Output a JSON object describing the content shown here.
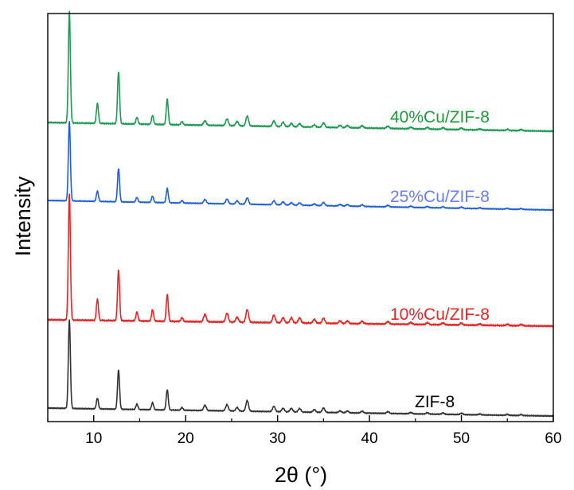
{
  "chart_data": {
    "type": "line",
    "title": "",
    "xlabel": "2θ (°)",
    "ylabel": "Intensity",
    "xlim": [
      5,
      60
    ],
    "xticks": [
      10,
      20,
      30,
      40,
      50,
      60
    ],
    "xtick_labels": [
      "10",
      "20",
      "30",
      "40",
      "50",
      "60"
    ],
    "grid": false,
    "legend": "labels beside each trace, right side",
    "peaks_2theta": [
      7.35,
      10.4,
      12.7,
      14.7,
      16.4,
      18.0,
      19.6,
      22.1,
      24.5,
      25.6,
      26.7,
      29.6,
      30.6,
      31.5,
      32.4,
      34.0,
      35.0,
      36.8,
      37.6,
      39.2,
      42.0,
      44.5,
      46.3,
      48.0,
      50.0,
      52.0,
      55.0,
      56.5
    ],
    "series": [
      {
        "name": "ZIF-8",
        "color": "#333333",
        "offset": 0,
        "intensities": [
          1.0,
          0.12,
          0.44,
          0.06,
          0.08,
          0.23,
          0.03,
          0.06,
          0.07,
          0.04,
          0.12,
          0.06,
          0.04,
          0.04,
          0.04,
          0.03,
          0.05,
          0.02,
          0.02,
          0.02,
          0.02,
          0.015,
          0.015,
          0.015,
          0.015,
          0.01,
          0.01,
          0.01
        ]
      },
      {
        "name": "10%Cu/ZIF-8",
        "color": "#e52626",
        "offset": 1,
        "intensities": [
          1.0,
          0.17,
          0.4,
          0.07,
          0.09,
          0.21,
          0.03,
          0.06,
          0.07,
          0.04,
          0.1,
          0.06,
          0.04,
          0.04,
          0.04,
          0.03,
          0.04,
          0.02,
          0.02,
          0.02,
          0.02,
          0.015,
          0.015,
          0.015,
          0.015,
          0.01,
          0.01,
          0.01
        ]
      },
      {
        "name": "25%Cu/ZIF-8",
        "color": "#1f5fd6",
        "offset": 2,
        "intensities": [
          1.0,
          0.13,
          0.42,
          0.06,
          0.08,
          0.18,
          0.03,
          0.05,
          0.06,
          0.04,
          0.08,
          0.05,
          0.04,
          0.03,
          0.03,
          0.02,
          0.04,
          0.02,
          0.02,
          0.02,
          0.02,
          0.015,
          0.015,
          0.015,
          0.015,
          0.01,
          0.01,
          0.01
        ]
      },
      {
        "name": "40%Cu/ZIF-8",
        "color": "#1f9a55",
        "offset": 3,
        "intensities": [
          1.0,
          0.18,
          0.47,
          0.06,
          0.08,
          0.23,
          0.03,
          0.04,
          0.06,
          0.04,
          0.09,
          0.05,
          0.04,
          0.03,
          0.03,
          0.02,
          0.04,
          0.02,
          0.02,
          0.02,
          0.02,
          0.015,
          0.015,
          0.015,
          0.015,
          0.01,
          0.01,
          0.01
        ]
      }
    ],
    "labels": [
      {
        "text": "ZIF-8",
        "series": "ZIF-8",
        "color": "#000000"
      },
      {
        "text": "10%Cu/ZIF-8",
        "series": "10%Cu/ZIF-8",
        "color": "#e52626"
      },
      {
        "text": "25%Cu/ZIF-8",
        "series": "25%Cu/ZIF-8",
        "color": "#6a7ff0"
      },
      {
        "text": "40%Cu/ZIF-8",
        "series": "40%Cu/ZIF-8",
        "color": "#1f9a3a"
      }
    ]
  }
}
